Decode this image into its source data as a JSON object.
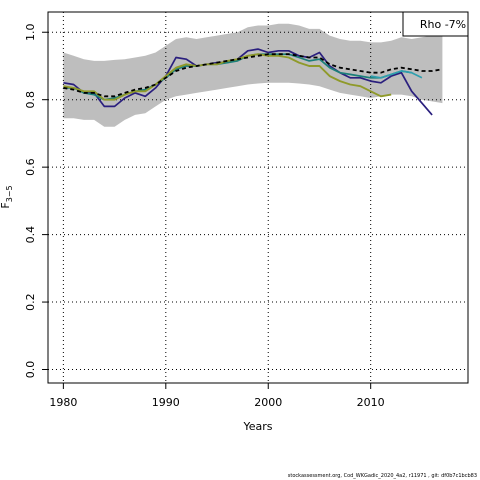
{
  "chart_data": {
    "type": "line",
    "xlabel": "Years",
    "ylabel": "F3–5",
    "ylabel_main": "F",
    "ylabel_sub": "3−5",
    "xlim": [
      1978.5,
      2019.5
    ],
    "ylim": [
      -0.04,
      1.06
    ],
    "x_ticks": [
      1980,
      1990,
      2000,
      2010
    ],
    "y_ticks": [
      0.0,
      0.2,
      0.4,
      0.6,
      0.8,
      1.0
    ],
    "x_tick_labels": [
      "1980",
      "1990",
      "2000",
      "2010"
    ],
    "y_tick_labels": [
      "0.0",
      "0.2",
      "0.4",
      "0.6",
      "0.8",
      "1.0"
    ],
    "grid": "dotted",
    "legend": {
      "position": "top-right",
      "text": "Rho -7%"
    },
    "band": {
      "x": [
        1980,
        1981,
        1982,
        1983,
        1984,
        1985,
        1986,
        1987,
        1988,
        1989,
        1990,
        1991,
        1992,
        1993,
        1994,
        1995,
        1996,
        1997,
        1998,
        1999,
        2000,
        2001,
        2002,
        2003,
        2004,
        2005,
        2006,
        2007,
        2008,
        2009,
        2010,
        2011,
        2012,
        2013,
        2014,
        2015,
        2016,
        2017
      ],
      "upper": [
        0.94,
        0.93,
        0.92,
        0.915,
        0.915,
        0.918,
        0.92,
        0.925,
        0.93,
        0.94,
        0.96,
        0.98,
        0.985,
        0.98,
        0.985,
        0.99,
        0.995,
        1.0,
        1.015,
        1.02,
        1.02,
        1.025,
        1.025,
        1.02,
        1.01,
        1.01,
        0.99,
        0.98,
        0.975,
        0.975,
        0.97,
        0.97,
        0.975,
        0.985,
        0.98,
        0.985,
        0.99,
        0.99
      ],
      "lower": [
        0.745,
        0.745,
        0.74,
        0.74,
        0.72,
        0.72,
        0.74,
        0.755,
        0.76,
        0.78,
        0.8,
        0.81,
        0.815,
        0.82,
        0.825,
        0.83,
        0.835,
        0.84,
        0.845,
        0.848,
        0.85,
        0.85,
        0.85,
        0.848,
        0.845,
        0.84,
        0.83,
        0.82,
        0.815,
        0.81,
        0.805,
        0.81,
        0.815,
        0.815,
        0.81,
        0.8,
        0.795,
        0.79
      ]
    },
    "series": [
      {
        "color": "#2a1f7e",
        "width": 1.7,
        "dash": "",
        "x": [
          1980,
          1981,
          1982,
          1983,
          1984,
          1985,
          1986,
          1987,
          1988,
          1989,
          1990,
          1991,
          1992,
          1993,
          1994,
          1995,
          1996,
          1997,
          1998,
          1999,
          2000,
          2001,
          2002,
          2003,
          2004,
          2005,
          2006,
          2007,
          2008,
          2009,
          2010,
          2011,
          2012,
          2013,
          2014,
          2015,
          2016
        ],
        "values": [
          0.85,
          0.845,
          0.82,
          0.82,
          0.78,
          0.78,
          0.805,
          0.82,
          0.81,
          0.835,
          0.87,
          0.925,
          0.92,
          0.9,
          0.905,
          0.91,
          0.91,
          0.92,
          0.945,
          0.95,
          0.94,
          0.945,
          0.945,
          0.93,
          0.925,
          0.94,
          0.9,
          0.88,
          0.865,
          0.865,
          0.855,
          0.85,
          0.87,
          0.88,
          0.825,
          0.79,
          0.755
        ]
      },
      {
        "color": "#1b7f7a",
        "width": 1.7,
        "dash": "",
        "x": [
          1980,
          1981,
          1982,
          1983,
          1984,
          1985,
          1986,
          1987,
          1988,
          1989,
          1990,
          1991,
          1992,
          1993,
          1994,
          1995,
          1996,
          1997,
          1998,
          1999,
          2000,
          2001,
          2002,
          2003,
          2004,
          2005,
          2006,
          2007,
          2008,
          2009,
          2010,
          2011,
          2012,
          2013,
          2014
        ],
        "values": [
          0.835,
          0.835,
          0.82,
          0.815,
          0.8,
          0.805,
          0.815,
          0.825,
          0.83,
          0.845,
          0.865,
          0.89,
          0.9,
          0.9,
          0.905,
          0.905,
          0.91,
          0.915,
          0.93,
          0.935,
          0.935,
          0.935,
          0.935,
          0.925,
          0.915,
          0.92,
          0.895,
          0.88,
          0.875,
          0.87,
          0.865,
          0.865,
          0.875,
          0.885,
          0.88
        ]
      },
      {
        "color": "#2f9fae",
        "width": 1.7,
        "dash": "",
        "x": [
          2010,
          2011,
          2012,
          2013,
          2014,
          2015
        ],
        "values": [
          0.87,
          0.865,
          0.875,
          0.885,
          0.88,
          0.865
        ]
      },
      {
        "color": "#8f9a2a",
        "width": 1.9,
        "dash": "",
        "x": [
          1980,
          1981,
          1982,
          1983,
          1984,
          1985,
          1986,
          1987,
          1988,
          1989,
          1990,
          1991,
          1992,
          1993,
          1994,
          1995,
          1996,
          1997,
          1998,
          1999,
          2000,
          2001,
          2002,
          2003,
          2004,
          2005,
          2006,
          2007,
          2008,
          2009,
          2010,
          2011,
          2012
        ],
        "values": [
          0.84,
          0.835,
          0.825,
          0.825,
          0.8,
          0.8,
          0.815,
          0.825,
          0.825,
          0.845,
          0.87,
          0.895,
          0.905,
          0.9,
          0.905,
          0.905,
          0.915,
          0.92,
          0.93,
          0.935,
          0.93,
          0.93,
          0.925,
          0.91,
          0.9,
          0.9,
          0.87,
          0.855,
          0.845,
          0.84,
          0.825,
          0.81,
          0.815
        ]
      },
      {
        "color": "#000000",
        "width": 1.8,
        "dash": "4,3",
        "x": [
          1980,
          1981,
          1982,
          1983,
          1984,
          1985,
          1986,
          1987,
          1988,
          1989,
          1990,
          1991,
          1992,
          1993,
          1994,
          1995,
          1996,
          1997,
          1998,
          1999,
          2000,
          2001,
          2002,
          2003,
          2004,
          2005,
          2006,
          2007,
          2008,
          2009,
          2010,
          2011,
          2012,
          2013,
          2014,
          2015,
          2016,
          2017
        ],
        "values": [
          0.835,
          0.83,
          0.82,
          0.82,
          0.81,
          0.81,
          0.82,
          0.83,
          0.835,
          0.845,
          0.865,
          0.885,
          0.895,
          0.9,
          0.905,
          0.91,
          0.915,
          0.92,
          0.925,
          0.93,
          0.935,
          0.935,
          0.935,
          0.93,
          0.925,
          0.925,
          0.905,
          0.895,
          0.89,
          0.885,
          0.88,
          0.88,
          0.89,
          0.895,
          0.89,
          0.885,
          0.885,
          0.89
        ]
      }
    ]
  },
  "footer": "stockassessment.org, Cod_WKGadic_2020_4a2, r11971 , git: df0b7c1bcb83"
}
